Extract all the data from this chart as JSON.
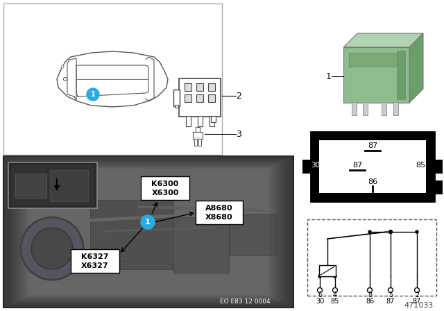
{
  "background_color": "#ffffff",
  "doc_number": "471033",
  "eo_code": "EO E83 12 0004",
  "circle1_color": "#29abe2",
  "relay_green": "#8fbc8f",
  "relay_green_top": "#b0d4b0",
  "relay_green_side": "#6a9f6a",
  "pin_labels_top": [
    "6",
    "4",
    "8",
    "5",
    "2"
  ],
  "pin_labels_bottom": [
    "30",
    "85",
    "86",
    "87",
    "87"
  ],
  "label_k6300": "K6300",
  "label_x6300": "X6300",
  "label_a8680": "A8680",
  "label_x8680": "X8680",
  "label_k6327": "K6327",
  "label_x6327": "X6327"
}
